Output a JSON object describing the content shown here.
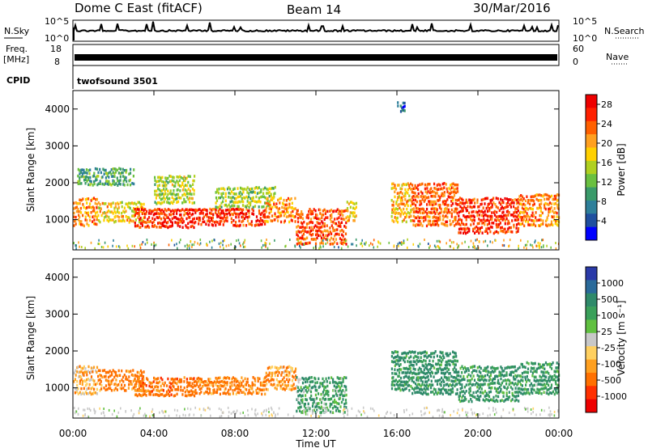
{
  "header": {
    "station": "Dome C East (fitACF)",
    "beam": "Beam 14",
    "date": "30/Mar/2016"
  },
  "strip_labels": {
    "nsky": "N.Sky",
    "nsky_ticks": [
      "10^5",
      "10^0"
    ],
    "nsearch": "N.Search",
    "freq_line1": "Freq.",
    "freq_line2": "[MHz]",
    "freq_ticks": [
      "18",
      "8"
    ],
    "nave": "Nave",
    "nave_ticks": [
      "60",
      "0"
    ],
    "cpid": "CPID",
    "cpid_value": "twofsound 3501"
  },
  "axes": {
    "xlabel": "Time UT",
    "x_ticks": [
      "00:00",
      "04:00",
      "08:00",
      "12:00",
      "16:00",
      "20:00",
      "00:00"
    ],
    "ylabel": "Slant Range [km]",
    "y_ticks": [
      "1000",
      "2000",
      "3000",
      "4000"
    ]
  },
  "colorbars": {
    "power": {
      "label": "Power [dB]",
      "ticks": [
        "4",
        "8",
        "12",
        "16",
        "20",
        "24",
        "28"
      ],
      "colors": [
        "#0000ff",
        "#1f4f9f",
        "#2e7f9a",
        "#3a9a6a",
        "#6ac040",
        "#b0d020",
        "#ffd000",
        "#ffa020",
        "#ff6000",
        "#ff2000",
        "#ee0000"
      ]
    },
    "velocity": {
      "label": "Velocity [m s⁻¹]",
      "ticks": [
        "1000",
        "500",
        "100",
        "25",
        "-25",
        "-100",
        "-500",
        "-1000"
      ],
      "colors": [
        "#2a3aa8",
        "#2a6a9a",
        "#2f8a6a",
        "#3aa05a",
        "#60c040",
        "#c8c8c8",
        "#ffd060",
        "#ffa020",
        "#ff7000",
        "#ff3000",
        "#ee0000"
      ]
    }
  },
  "chart_data": [
    {
      "type": "heatmap",
      "name": "Power",
      "xlabel": "Time UT",
      "ylabel": "Slant Range [km]",
      "xlim": [
        "00:00",
        "24:00"
      ],
      "ylim": [
        180,
        4500
      ],
      "colorbar_range_db": [
        0,
        30
      ],
      "echo_regions": [
        {
          "t0": 0.0,
          "t1": 1.2,
          "r0": 800,
          "r1": 1600,
          "value": 22
        },
        {
          "t0": 0.2,
          "t1": 3.0,
          "r0": 1900,
          "r1": 2400,
          "value": 10
        },
        {
          "t0": 1.2,
          "t1": 3.5,
          "r0": 900,
          "r1": 1500,
          "value": 18
        },
        {
          "t0": 3.0,
          "t1": 6.0,
          "r0": 750,
          "r1": 1300,
          "value": 27
        },
        {
          "t0": 4.0,
          "t1": 6.0,
          "r0": 1400,
          "r1": 2200,
          "value": 15
        },
        {
          "t0": 6.0,
          "t1": 9.5,
          "r0": 800,
          "r1": 1300,
          "value": 27
        },
        {
          "t0": 7.0,
          "t1": 10.0,
          "r0": 1300,
          "r1": 1900,
          "value": 14
        },
        {
          "t0": 9.5,
          "t1": 11.0,
          "r0": 900,
          "r1": 1600,
          "value": 22
        },
        {
          "t0": 11.0,
          "t1": 13.5,
          "r0": 300,
          "r1": 1300,
          "value": 25
        },
        {
          "t0": 13.5,
          "t1": 14.0,
          "r0": 900,
          "r1": 1500,
          "value": 18
        },
        {
          "t0": 15.7,
          "t1": 16.7,
          "r0": 900,
          "r1": 2000,
          "value": 20
        },
        {
          "t0": 16.7,
          "t1": 19.0,
          "r0": 800,
          "r1": 2000,
          "value": 24
        },
        {
          "t0": 19.0,
          "t1": 22.0,
          "r0": 600,
          "r1": 1600,
          "value": 27
        },
        {
          "t0": 22.0,
          "t1": 24.0,
          "r0": 800,
          "r1": 1700,
          "value": 22
        },
        {
          "t0": 16.0,
          "t1": 16.4,
          "r0": 3900,
          "r1": 4200,
          "value": 6
        }
      ]
    },
    {
      "type": "heatmap",
      "name": "Velocity",
      "xlabel": "Time UT",
      "ylabel": "Slant Range [km]",
      "xlim": [
        "00:00",
        "24:00"
      ],
      "ylim": [
        180,
        4500
      ],
      "colorbar_levels": [
        1000,
        500,
        100,
        25,
        -25,
        -100,
        -500,
        -1000
      ],
      "echo_regions": [
        {
          "t0": 0.0,
          "t1": 1.2,
          "r0": 800,
          "r1": 1600,
          "value": -60
        },
        {
          "t0": 1.2,
          "t1": 3.5,
          "r0": 900,
          "r1": 1500,
          "value": -150
        },
        {
          "t0": 3.0,
          "t1": 6.0,
          "r0": 750,
          "r1": 1300,
          "value": -200
        },
        {
          "t0": 6.0,
          "t1": 9.5,
          "r0": 800,
          "r1": 1300,
          "value": -150
        },
        {
          "t0": 9.5,
          "t1": 11.0,
          "r0": 900,
          "r1": 1600,
          "value": -100
        },
        {
          "t0": 11.0,
          "t1": 13.5,
          "r0": 300,
          "r1": 1300,
          "value": 80
        },
        {
          "t0": 15.7,
          "t1": 16.7,
          "r0": 900,
          "r1": 2000,
          "value": 120
        },
        {
          "t0": 16.7,
          "t1": 19.0,
          "r0": 800,
          "r1": 2000,
          "value": 150
        },
        {
          "t0": 19.0,
          "t1": 22.0,
          "r0": 600,
          "r1": 1600,
          "value": 120
        },
        {
          "t0": 22.0,
          "t1": 24.0,
          "r0": 800,
          "r1": 1700,
          "value": 100
        }
      ]
    }
  ]
}
